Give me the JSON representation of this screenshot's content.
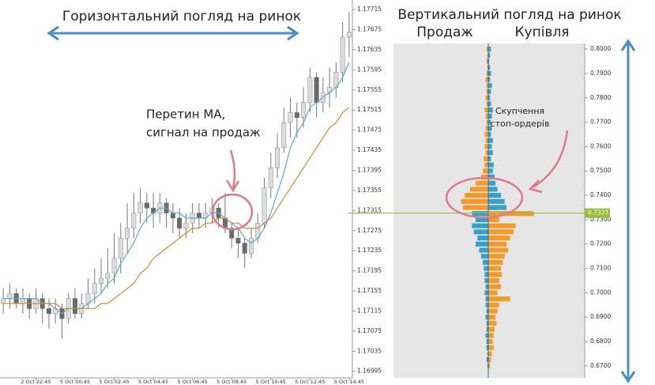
{
  "chart_data": [
    {
      "type": "candlestick",
      "title": "Горизонтальний погляд на ринок",
      "annotation": [
        "Перетин MA,",
        "сигнал на продаж"
      ],
      "categories": [
        null,
        null,
        null,
        null,
        null,
        "2 Oct 22:45",
        null,
        null,
        null,
        null,
        null,
        "5 Oct 00:45",
        null,
        null,
        null,
        null,
        null,
        "5 Oct 02:45",
        null,
        null,
        null,
        null,
        null,
        "5 Oct 04:45",
        null,
        null,
        null,
        null,
        null,
        "5 Oct 06:45",
        null,
        null,
        null,
        null,
        null,
        "5 Oct 08:45",
        null,
        null,
        null,
        null,
        null,
        "5 Oct 10:45",
        null,
        null,
        null,
        null,
        null,
        "5 Oct 12:45",
        null,
        null,
        null,
        null,
        null,
        "5 Oct 14:45"
      ],
      "open": [
        1.1713,
        1.1714,
        1.1715,
        1.1713,
        1.1714,
        1.1712,
        1.1714,
        1.1712,
        1.1711,
        1.1712,
        1.171,
        1.1714,
        1.1711,
        1.1713,
        1.1715,
        1.1717,
        1.1718,
        1.1719,
        1.1722,
        1.1726,
        1.1728,
        1.1731,
        1.1733,
        1.1732,
        1.1731,
        1.1733,
        1.1731,
        1.173,
        1.1728,
        1.1729,
        1.1731,
        1.173,
        1.1731,
        1.1732,
        1.173,
        1.1728,
        1.1726,
        1.1725,
        1.1723,
        1.1726,
        1.1729,
        1.1736,
        1.174,
        1.1744,
        1.1749,
        1.1751,
        1.175,
        1.1753,
        1.1758,
        1.1753,
        1.1755,
        1.1756,
        1.1759,
        1.1766
      ],
      "high": [
        1.1716,
        1.1717,
        1.1716,
        1.1716,
        1.1715,
        1.1716,
        1.1715,
        1.1714,
        1.1714,
        1.1713,
        1.1715,
        1.1716,
        1.1715,
        1.1718,
        1.172,
        1.1722,
        1.1724,
        1.1727,
        1.1729,
        1.1733,
        1.1735,
        1.1736,
        1.1735,
        1.1735,
        1.1735,
        1.1734,
        1.1733,
        1.1732,
        1.1731,
        1.1733,
        1.1733,
        1.1733,
        1.1734,
        1.1733,
        1.1735,
        1.1729,
        1.1728,
        1.1726,
        1.1728,
        1.1731,
        1.1738,
        1.1743,
        1.1747,
        1.1752,
        1.1754,
        1.1753,
        1.1756,
        1.176,
        1.1759,
        1.1758,
        1.176,
        1.1761,
        1.1769,
        1.1771
      ],
      "low": [
        1.1711,
        1.1712,
        1.1712,
        1.1711,
        1.171,
        1.1711,
        1.1709,
        1.1708,
        1.1709,
        1.1706,
        1.1709,
        1.171,
        1.171,
        1.1712,
        1.1713,
        1.1715,
        1.1716,
        1.1717,
        1.1719,
        1.1723,
        1.1726,
        1.1729,
        1.1729,
        1.1728,
        1.1729,
        1.1728,
        1.1727,
        1.1726,
        1.1726,
        1.1727,
        1.1728,
        1.1728,
        1.1729,
        1.1728,
        1.1727,
        1.1724,
        1.1722,
        1.172,
        1.1722,
        1.1725,
        1.1728,
        1.1734,
        1.1738,
        1.1743,
        1.1746,
        1.1746,
        1.1748,
        1.1751,
        1.175,
        1.1751,
        1.1752,
        1.1754,
        1.1757,
        1.1762
      ],
      "close": [
        1.1714,
        1.1715,
        1.1713,
        1.1714,
        1.1712,
        1.1714,
        1.1712,
        1.1711,
        1.1712,
        1.171,
        1.1714,
        1.1711,
        1.1713,
        1.1715,
        1.1717,
        1.1718,
        1.1719,
        1.1722,
        1.1726,
        1.1728,
        1.1731,
        1.1733,
        1.1732,
        1.1731,
        1.1733,
        1.1731,
        1.173,
        1.1728,
        1.1729,
        1.1731,
        1.173,
        1.1731,
        1.1732,
        1.173,
        1.1728,
        1.1726,
        1.1725,
        1.1723,
        1.1726,
        1.1729,
        1.1736,
        1.174,
        1.1744,
        1.1749,
        1.1751,
        1.175,
        1.1753,
        1.1758,
        1.1753,
        1.1755,
        1.1756,
        1.1759,
        1.1766,
        1.1767
      ],
      "up_color": "#dcdcdc",
      "down_color": "#6b6b6b",
      "lines": [
        {
          "color": "#5aa9d6",
          "values": [
            1.1714,
            1.1714,
            1.1714,
            1.1714,
            1.1714,
            1.1714,
            1.1713,
            1.1713,
            1.1712,
            1.1711,
            1.1712,
            1.1712,
            1.1712,
            1.1713,
            1.1714,
            1.1715,
            1.1717,
            1.1718,
            1.1721,
            1.1723,
            1.1725,
            1.1728,
            1.173,
            1.1731,
            1.1732,
            1.1732,
            1.1731,
            1.1731,
            1.173,
            1.173,
            1.173,
            1.173,
            1.1731,
            1.1731,
            1.173,
            1.1729,
            1.1728,
            1.1726,
            1.1725,
            1.1726,
            1.1728,
            1.1731,
            1.1735,
            1.1739,
            1.1744,
            1.1747,
            1.1749,
            1.1752,
            1.1753,
            1.1754,
            1.1755,
            1.1756,
            1.1758,
            1.1761
          ]
        },
        {
          "color": "#d08a3c",
          "values": [
            1.1713,
            1.1713,
            1.1713,
            1.1713,
            1.1713,
            1.1713,
            1.1713,
            1.1713,
            1.1713,
            1.1712,
            1.1712,
            1.1712,
            1.1712,
            1.1712,
            1.1712,
            1.1713,
            1.1713,
            1.1714,
            1.1715,
            1.1716,
            1.1717,
            1.1719,
            1.172,
            1.1722,
            1.1723,
            1.1724,
            1.1725,
            1.1726,
            1.1727,
            1.1728,
            1.1728,
            1.1729,
            1.1729,
            1.173,
            1.173,
            1.1729,
            1.1729,
            1.1728,
            1.1728,
            1.1728,
            1.1729,
            1.173,
            1.1732,
            1.1734,
            1.1736,
            1.1738,
            1.174,
            1.1742,
            1.1744,
            1.1746,
            1.1748,
            1.1749,
            1.1751,
            1.1752
          ]
        }
      ],
      "ylim": [
        1.16982,
        1.17734
      ],
      "yticks": [
        1.17715,
        1.17675,
        1.17635,
        1.17595,
        1.17555,
        1.17515,
        1.17475,
        1.17435,
        1.17395,
        1.17355,
        1.17315,
        1.17275,
        1.17235,
        1.17195,
        1.17155,
        1.17115,
        1.17075,
        1.17035,
        1.16995
      ]
    },
    {
      "type": "orderbook",
      "title": "Вертикальний погляд на ринок",
      "annotation": [
        "Скупчення",
        "стоп-ордерів"
      ],
      "current_price": 0.7327,
      "current_price_color": "#9bbb3b",
      "y": [
        0.8,
        0.7975,
        0.795,
        0.7925,
        0.79,
        0.7875,
        0.785,
        0.7825,
        0.78,
        0.7775,
        0.775,
        0.7725,
        0.77,
        0.7675,
        0.765,
        0.7625,
        0.76,
        0.7575,
        0.755,
        0.7525,
        0.75,
        0.7475,
        0.745,
        0.7425,
        0.74,
        0.7375,
        0.735,
        0.7325,
        0.73,
        0.7275,
        0.725,
        0.7225,
        0.72,
        0.7175,
        0.715,
        0.7125,
        0.71,
        0.7075,
        0.705,
        0.7025,
        0.7,
        0.6975,
        0.695,
        0.6925,
        0.69,
        0.6875,
        0.685,
        0.6825,
        0.68,
        0.6775,
        0.675,
        0.6725,
        0.67
      ],
      "series": [
        {
          "name": "Продаж",
          "color": "#f39a2b",
          "color_below_price": "#3a9fc4",
          "values": [
            2,
            1,
            2,
            1,
            2,
            3,
            2,
            2,
            3,
            2,
            4,
            3,
            2,
            3,
            4,
            3,
            4,
            3,
            5,
            4,
            6,
            8,
            14,
            20,
            26,
            30,
            28,
            18,
            14,
            18,
            16,
            12,
            14,
            10,
            8,
            6,
            5,
            4,
            4,
            3,
            4,
            3,
            3,
            2,
            3,
            2,
            2,
            3,
            2,
            2,
            1,
            2,
            1
          ]
        },
        {
          "name": "Купівля",
          "color": "#3a9fc4",
          "color_below_price": "#f39a2b",
          "values": [
            3,
            2,
            1,
            2,
            3,
            2,
            4,
            3,
            2,
            3,
            5,
            4,
            3,
            4,
            3,
            5,
            4,
            5,
            3,
            6,
            5,
            7,
            8,
            10,
            14,
            18,
            20,
            50,
            12,
            30,
            28,
            24,
            20,
            22,
            18,
            16,
            14,
            15,
            12,
            14,
            10,
            24,
            12,
            10,
            8,
            9,
            7,
            6,
            5,
            6,
            4,
            3,
            2
          ]
        }
      ],
      "xlim": [
        0,
        100
      ],
      "ylim": [
        0.6651,
        0.8023
      ],
      "yticks": [
        {
          "value": 0.8,
          "label": "0.8000"
        },
        {
          "value": 0.79,
          "label": "0.7900"
        },
        {
          "value": 0.78,
          "label": "0.7800"
        },
        {
          "value": 0.77,
          "label": "0.7700"
        },
        {
          "value": 0.76,
          "label": "0.7600"
        },
        {
          "value": 0.75,
          "label": "0.7500"
        },
        {
          "value": 0.74,
          "label": "0.7400"
        },
        {
          "value": 0.73,
          "label": "0.7300"
        },
        {
          "value": 0.72,
          "label": "0.7200"
        },
        {
          "value": 0.71,
          "label": "0.7100"
        },
        {
          "value": 0.7,
          "label": "0.7000"
        },
        {
          "value": 0.69,
          "label": "0.6900"
        },
        {
          "value": 0.68,
          "label": "0.6800"
        },
        {
          "value": 0.67,
          "label": "0.6700"
        }
      ]
    }
  ]
}
